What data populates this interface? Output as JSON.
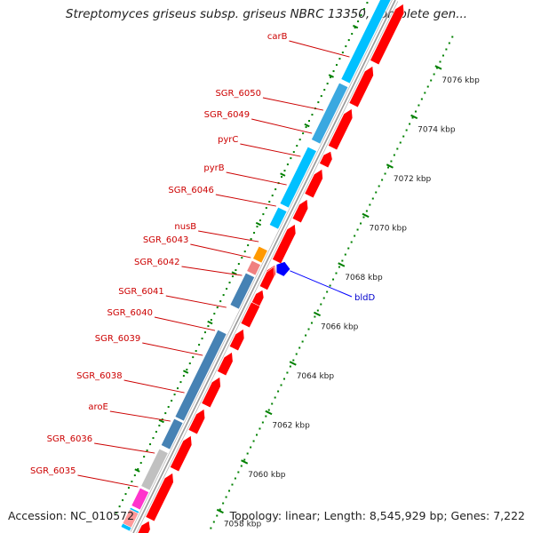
{
  "title": "Streptomyces griseus subsp. griseus NBRC 13350, complete gen...",
  "footer": {
    "accession": "Accession: NC_010572",
    "summary": "Topology: linear; Length: 8,545,929 bp; Genes: 7,222"
  },
  "ticks": [
    {
      "label": "7076 kbp"
    },
    {
      "label": "7074 kbp"
    },
    {
      "label": "7072 kbp"
    },
    {
      "label": "7070 kbp"
    },
    {
      "label": "7068 kbp"
    },
    {
      "label": "7066 kbp"
    },
    {
      "label": "7064 kbp"
    },
    {
      "label": "7062 kbp"
    },
    {
      "label": "7060 kbp"
    },
    {
      "label": "7058 kbp"
    }
  ],
  "gene_labels": [
    {
      "text": "carB"
    },
    {
      "text": "SGR_6050"
    },
    {
      "text": "SGR_6049"
    },
    {
      "text": "pyrC"
    },
    {
      "text": "pyrB"
    },
    {
      "text": "SGR_6046"
    },
    {
      "text": "nusB"
    },
    {
      "text": "SGR_6043"
    },
    {
      "text": "SGR_6042"
    },
    {
      "text": "SGR_6041"
    },
    {
      "text": "SGR_6040"
    },
    {
      "text": "SGR_6039"
    },
    {
      "text": "SGR_6038"
    },
    {
      "text": "aroE"
    },
    {
      "text": "SGR_6036"
    },
    {
      "text": "SGR_6035"
    }
  ],
  "feature_label": {
    "text": "bldD"
  },
  "colors": {
    "backbone": "#999999",
    "gene_red": "#ff0000",
    "cog_light_blue": "#00c0ff",
    "cog_steel_blue": "#4682b4",
    "cog_gray": "#c0c0c0",
    "cog_orange": "#ff9900",
    "cog_magenta": "#ff33cc",
    "tick_green": "#008000",
    "label_red": "#cc0000",
    "feature_blue": "#0000ff"
  }
}
